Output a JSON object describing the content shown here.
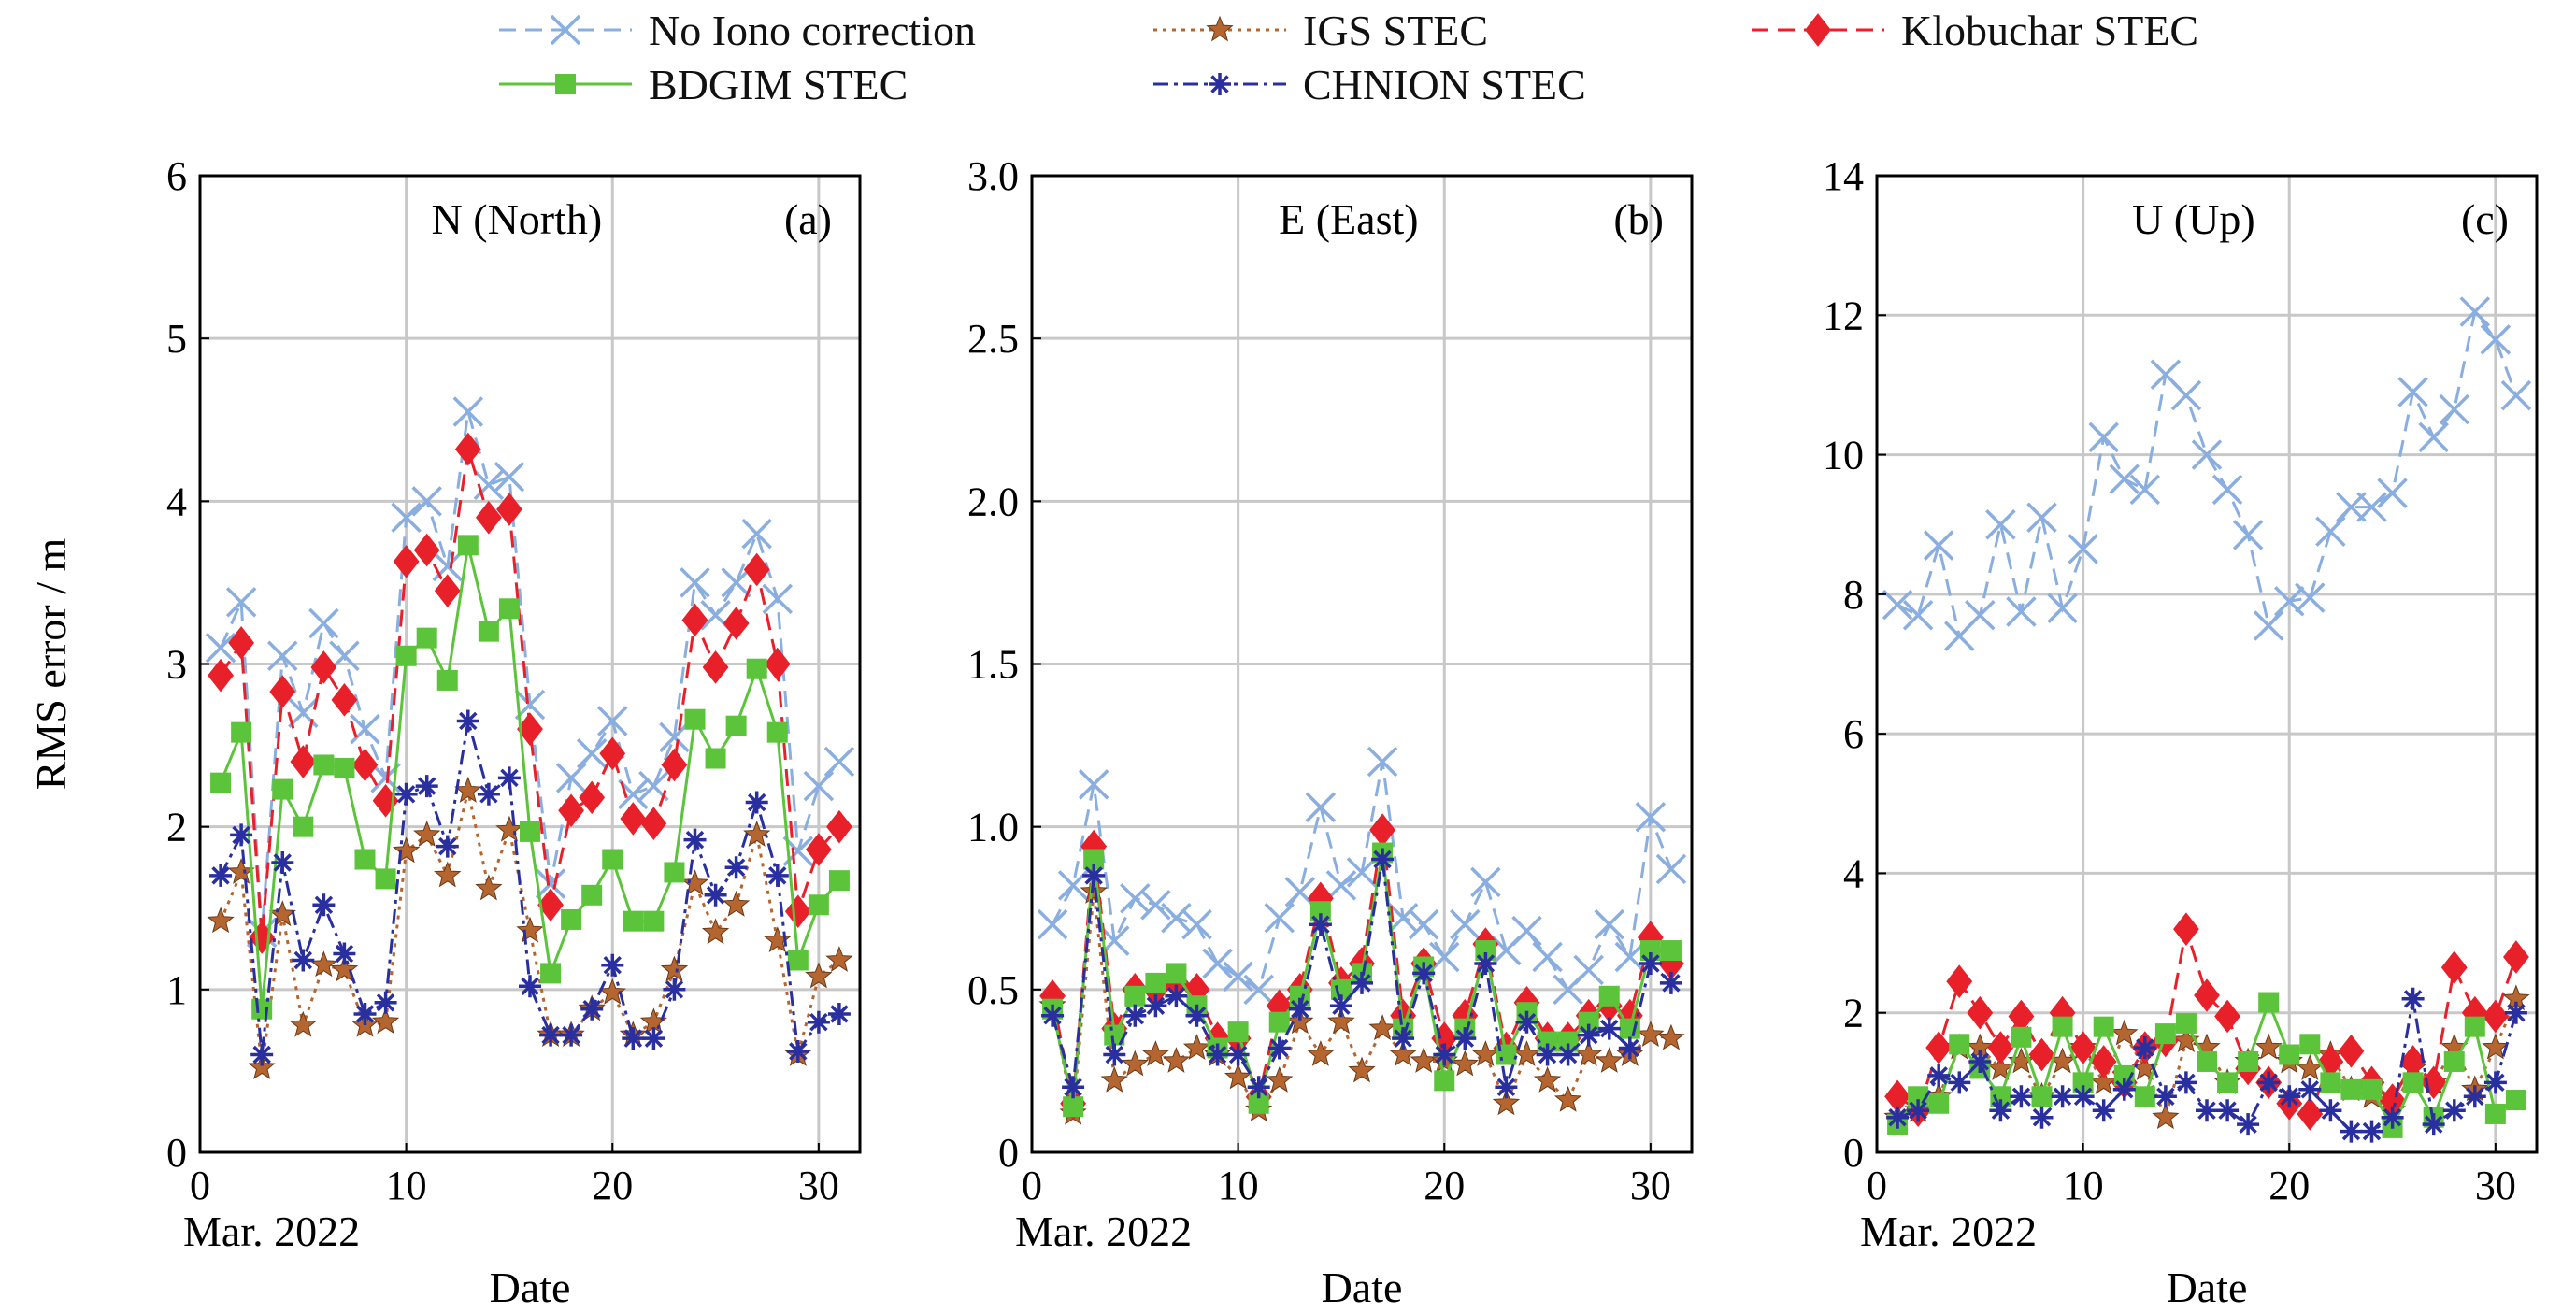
{
  "legend": {
    "items": [
      {
        "label": "No Iono correction",
        "series": "noiono"
      },
      {
        "label": "IGS STEC",
        "series": "igs"
      },
      {
        "label": "Klobuchar STEC",
        "series": "klob"
      },
      {
        "label": "BDGIM STEC",
        "series": "bdgim"
      },
      {
        "label": "CHNION STEC",
        "series": "chnion"
      }
    ]
  },
  "styles": {
    "noiono": {
      "color": "#8aaee0",
      "marker": "x",
      "dash": "18,10"
    },
    "igs": {
      "color": "#b5652f",
      "marker": "star",
      "dash": "4,6"
    },
    "klob": {
      "color": "#e8202a",
      "marker": "diamond",
      "dash": "18,10"
    },
    "bdgim": {
      "color": "#5cc43a",
      "marker": "square",
      "dash": ""
    },
    "chnion": {
      "color": "#2a2fa0",
      "marker": "asterisk",
      "dash": "16,6,4,6"
    }
  },
  "chart_data": [
    {
      "type": "line",
      "title": "N (North)",
      "panel_label": "(a)",
      "xlabel": "Date",
      "x_sublabel": "Mar. 2022",
      "ylabel": "RMS error / m",
      "xlim": [
        0,
        32
      ],
      "ylim": [
        0,
        6
      ],
      "xticks": [
        0,
        10,
        20,
        30
      ],
      "yticks": [
        0,
        1,
        2,
        3,
        4,
        5,
        6
      ],
      "ytick_labels": [
        "0",
        "1",
        "2",
        "3",
        "4",
        "5",
        "6"
      ],
      "grid": true,
      "x": [
        1,
        2,
        3,
        4,
        5,
        6,
        7,
        8,
        9,
        10,
        11,
        12,
        13,
        14,
        15,
        16,
        17,
        18,
        19,
        20,
        21,
        22,
        23,
        24,
        25,
        26,
        27,
        28,
        29,
        30,
        31
      ],
      "series": [
        {
          "name": "No Iono correction",
          "key": "noiono",
          "values": [
            3.1,
            3.38,
            1.35,
            3.05,
            2.7,
            3.25,
            3.05,
            2.6,
            2.3,
            3.9,
            4.0,
            3.6,
            4.55,
            4.1,
            4.15,
            2.75,
            1.65,
            2.3,
            2.45,
            2.65,
            2.2,
            2.25,
            2.55,
            3.5,
            3.3,
            3.5,
            3.8,
            3.4,
            1.85,
            2.25,
            2.4
          ]
        },
        {
          "name": "IGS STEC",
          "key": "igs",
          "values": [
            1.42,
            1.72,
            0.52,
            1.46,
            0.78,
            1.15,
            1.12,
            0.78,
            0.8,
            1.85,
            1.95,
            1.7,
            2.22,
            1.62,
            1.98,
            1.36,
            0.72,
            0.72,
            0.88,
            0.98,
            0.72,
            0.8,
            1.12,
            1.65,
            1.35,
            1.52,
            1.95,
            1.3,
            0.6,
            1.08,
            1.18
          ]
        },
        {
          "name": "Klobuchar STEC",
          "key": "klob",
          "values": [
            2.93,
            3.13,
            1.32,
            2.83,
            2.4,
            2.98,
            2.78,
            2.38,
            2.16,
            3.63,
            3.7,
            3.45,
            4.32,
            3.9,
            3.95,
            2.6,
            1.52,
            2.1,
            2.18,
            2.45,
            2.05,
            2.02,
            2.38,
            3.27,
            2.98,
            3.25,
            3.58,
            3.0,
            1.48,
            1.86,
            2.0
          ]
        },
        {
          "name": "BDGIM STEC",
          "key": "bdgim",
          "values": [
            2.27,
            2.58,
            0.88,
            2.23,
            2.0,
            2.38,
            2.36,
            1.8,
            1.68,
            3.05,
            3.16,
            2.9,
            3.73,
            3.2,
            3.34,
            1.97,
            1.1,
            1.43,
            1.58,
            1.8,
            1.42,
            1.42,
            1.72,
            2.66,
            2.42,
            2.62,
            2.97,
            2.58,
            1.18,
            1.52,
            1.67
          ]
        },
        {
          "name": "CHNION STEC",
          "key": "chnion",
          "values": [
            1.7,
            1.95,
            0.6,
            1.78,
            1.18,
            1.52,
            1.22,
            0.85,
            0.92,
            2.2,
            2.25,
            1.88,
            2.65,
            2.2,
            2.3,
            1.02,
            0.72,
            0.72,
            0.88,
            1.15,
            0.7,
            0.7,
            1.0,
            1.92,
            1.58,
            1.75,
            2.15,
            1.7,
            0.62,
            0.8,
            0.85
          ]
        }
      ]
    },
    {
      "type": "line",
      "title": "E (East)",
      "panel_label": "(b)",
      "xlabel": "Date",
      "x_sublabel": "Mar. 2022",
      "ylabel": "",
      "xlim": [
        0,
        32
      ],
      "ylim": [
        0,
        3
      ],
      "xticks": [
        0,
        10,
        20,
        30
      ],
      "yticks": [
        0,
        0.5,
        1.0,
        1.5,
        2.0,
        2.5,
        3.0
      ],
      "ytick_labels": [
        "0",
        "0.5",
        "1.0",
        "1.5",
        "2.0",
        "2.5",
        "3.0"
      ],
      "grid": true,
      "x": [
        1,
        2,
        3,
        4,
        5,
        6,
        7,
        8,
        9,
        10,
        11,
        12,
        13,
        14,
        15,
        16,
        17,
        18,
        19,
        20,
        21,
        22,
        23,
        24,
        25,
        26,
        27,
        28,
        29,
        30,
        31
      ],
      "series": [
        {
          "name": "No Iono correction",
          "key": "noiono",
          "values": [
            0.7,
            0.82,
            1.13,
            0.65,
            0.78,
            0.76,
            0.72,
            0.7,
            0.58,
            0.54,
            0.5,
            0.72,
            0.8,
            1.06,
            0.82,
            0.86,
            1.2,
            0.72,
            0.7,
            0.6,
            0.7,
            0.83,
            0.62,
            0.68,
            0.6,
            0.5,
            0.56,
            0.7,
            0.6,
            1.03,
            0.87
          ]
        },
        {
          "name": "IGS STEC",
          "key": "igs",
          "values": [
            0.45,
            0.12,
            0.8,
            0.22,
            0.27,
            0.3,
            0.28,
            0.32,
            0.3,
            0.23,
            0.13,
            0.22,
            0.4,
            0.3,
            0.4,
            0.25,
            0.38,
            0.3,
            0.28,
            0.28,
            0.27,
            0.3,
            0.15,
            0.3,
            0.22,
            0.16,
            0.3,
            0.28,
            0.3,
            0.36,
            0.35
          ]
        },
        {
          "name": "Klobuchar STEC",
          "key": "klob",
          "values": [
            0.48,
            0.15,
            0.94,
            0.38,
            0.5,
            0.5,
            0.52,
            0.5,
            0.35,
            0.35,
            0.17,
            0.45,
            0.5,
            0.78,
            0.52,
            0.58,
            0.99,
            0.42,
            0.58,
            0.35,
            0.42,
            0.64,
            0.32,
            0.46,
            0.35,
            0.35,
            0.42,
            0.45,
            0.42,
            0.66,
            0.58
          ]
        },
        {
          "name": "BDGIM STEC",
          "key": "bdgim",
          "values": [
            0.44,
            0.14,
            0.9,
            0.36,
            0.48,
            0.52,
            0.55,
            0.45,
            0.32,
            0.37,
            0.15,
            0.4,
            0.48,
            0.74,
            0.5,
            0.55,
            0.92,
            0.38,
            0.57,
            0.22,
            0.38,
            0.62,
            0.3,
            0.43,
            0.34,
            0.34,
            0.4,
            0.48,
            0.38,
            0.62,
            0.62
          ]
        },
        {
          "name": "CHNION STEC",
          "key": "chnion",
          "values": [
            0.42,
            0.2,
            0.85,
            0.3,
            0.42,
            0.45,
            0.48,
            0.42,
            0.3,
            0.3,
            0.2,
            0.32,
            0.44,
            0.7,
            0.45,
            0.52,
            0.9,
            0.35,
            0.55,
            0.3,
            0.35,
            0.58,
            0.2,
            0.4,
            0.3,
            0.3,
            0.36,
            0.38,
            0.32,
            0.58,
            0.52
          ]
        }
      ]
    },
    {
      "type": "line",
      "title": "U (Up)",
      "panel_label": "(c)",
      "xlabel": "Date",
      "x_sublabel": "Mar. 2022",
      "ylabel": "",
      "xlim": [
        0,
        32
      ],
      "ylim": [
        0,
        14
      ],
      "xticks": [
        0,
        10,
        20,
        30
      ],
      "yticks": [
        0,
        2,
        4,
        6,
        8,
        10,
        12,
        14
      ],
      "ytick_labels": [
        "0",
        "2",
        "4",
        "6",
        "8",
        "10",
        "12",
        "14"
      ],
      "grid": true,
      "x": [
        1,
        2,
        3,
        4,
        5,
        6,
        7,
        8,
        9,
        10,
        11,
        12,
        13,
        14,
        15,
        16,
        17,
        18,
        19,
        20,
        21,
        22,
        23,
        24,
        25,
        26,
        27,
        28,
        29,
        30,
        31
      ],
      "series": [
        {
          "name": "No Iono correction",
          "key": "noiono",
          "values": [
            7.85,
            7.7,
            8.7,
            7.4,
            7.7,
            9.0,
            7.75,
            9.1,
            7.8,
            8.65,
            10.25,
            9.65,
            9.5,
            11.15,
            10.85,
            10.0,
            9.5,
            8.85,
            7.55,
            7.9,
            7.95,
            8.9,
            9.25,
            9.25,
            9.45,
            10.9,
            10.25,
            10.65,
            12.05,
            11.65,
            10.85
          ]
        },
        {
          "name": "IGS STEC",
          "key": "igs",
          "values": [
            0.5,
            0.6,
            0.8,
            1.5,
            1.5,
            1.2,
            1.3,
            0.8,
            1.3,
            1.5,
            1.0,
            1.7,
            1.2,
            0.5,
            1.6,
            1.5,
            1.0,
            1.3,
            1.5,
            1.3,
            1.2,
            1.4,
            0.9,
            0.8,
            0.6,
            1.2,
            1.0,
            1.5,
            0.9,
            1.5,
            2.2
          ]
        },
        {
          "name": "Klobuchar STEC",
          "key": "klob",
          "values": [
            0.8,
            0.6,
            1.5,
            2.45,
            2.0,
            1.5,
            1.95,
            1.4,
            2.0,
            1.5,
            1.3,
            1.0,
            1.5,
            1.6,
            3.2,
            2.25,
            1.95,
            1.2,
            1.0,
            0.7,
            0.55,
            1.3,
            1.45,
            1.0,
            0.75,
            1.3,
            1.0,
            2.65,
            2.0,
            1.95,
            2.8
          ]
        },
        {
          "name": "BDGIM STEC",
          "key": "bdgim",
          "values": [
            0.4,
            0.8,
            0.7,
            1.55,
            1.2,
            0.8,
            1.65,
            0.8,
            1.8,
            1.0,
            1.8,
            1.1,
            0.8,
            1.7,
            1.85,
            1.3,
            1.0,
            1.3,
            2.15,
            1.4,
            1.55,
            1.0,
            0.9,
            0.9,
            0.35,
            1.0,
            0.5,
            1.3,
            1.8,
            0.55,
            0.75
          ]
        },
        {
          "name": "CHNION STEC",
          "key": "chnion",
          "values": [
            0.5,
            0.6,
            1.1,
            1.0,
            1.3,
            0.6,
            0.8,
            0.5,
            0.8,
            0.8,
            0.6,
            0.9,
            1.5,
            0.8,
            1.0,
            0.6,
            0.6,
            0.4,
            1.0,
            0.8,
            0.9,
            0.6,
            0.3,
            0.3,
            0.5,
            2.2,
            0.4,
            0.6,
            0.8,
            1.0,
            2.0
          ]
        }
      ]
    }
  ]
}
